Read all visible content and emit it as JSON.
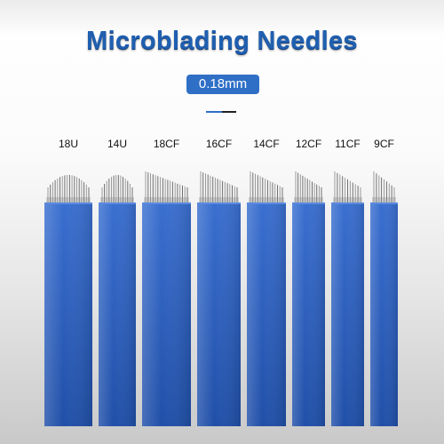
{
  "title": "Microblading Needles",
  "size_badge": "0.18mm",
  "colors": {
    "title": "#1f5fb0",
    "badge": "#2f6fc6",
    "blade_top": "#3a6fd0",
    "blade_bottom": "#204fa8"
  },
  "needles": [
    {
      "label": "18U",
      "shape": "U",
      "pins": 18
    },
    {
      "label": "14U",
      "shape": "U",
      "pins": 14
    },
    {
      "label": "18CF",
      "shape": "CF",
      "pins": 18
    },
    {
      "label": "16CF",
      "shape": "CF",
      "pins": 16
    },
    {
      "label": "14CF",
      "shape": "CF",
      "pins": 14
    },
    {
      "label": "12CF",
      "shape": "CF",
      "pins": 12
    },
    {
      "label": "11CF",
      "shape": "CF",
      "pins": 11
    },
    {
      "label": "9CF",
      "shape": "CF",
      "pins": 9
    }
  ]
}
